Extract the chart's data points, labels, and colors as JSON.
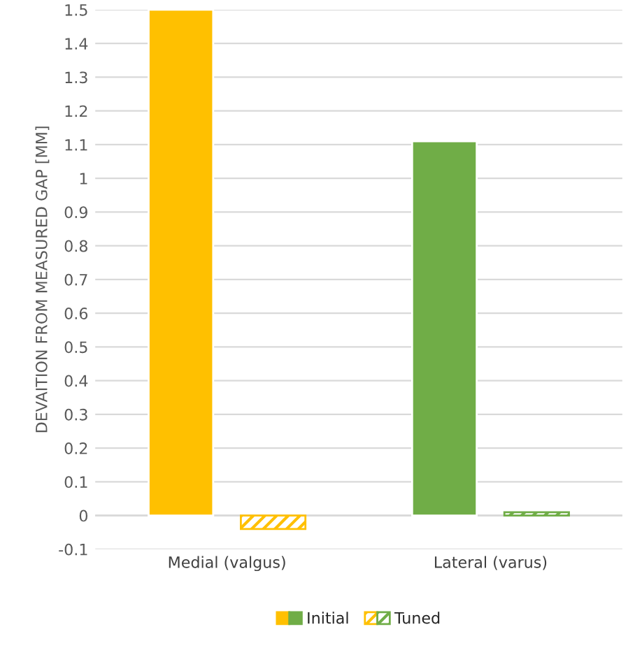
{
  "chart_data": {
    "type": "bar",
    "ylabel": "DEVAITION FROM MEASURED GAP [MM]",
    "categories": [
      "Medial (valgus)",
      "Lateral (varus)"
    ],
    "series": [
      {
        "name": "Initial",
        "colors": [
          "#ffc000",
          "#70ad47"
        ],
        "values": [
          1.5,
          1.11
        ]
      },
      {
        "name": "Tuned",
        "colors": [
          "#ffc000",
          "#70ad47"
        ],
        "line_style": "dashed",
        "values": [
          -0.04,
          0.01
        ]
      }
    ],
    "ylim": [
      -0.1,
      1.5
    ],
    "yticks": [
      -0.1,
      0,
      0.1,
      0.2,
      0.3,
      0.4,
      0.5,
      0.6,
      0.7,
      0.8,
      0.9,
      1,
      1.1,
      1.2,
      1.3,
      1.4,
      1.5
    ],
    "grid": "y",
    "legend": "bottom"
  }
}
